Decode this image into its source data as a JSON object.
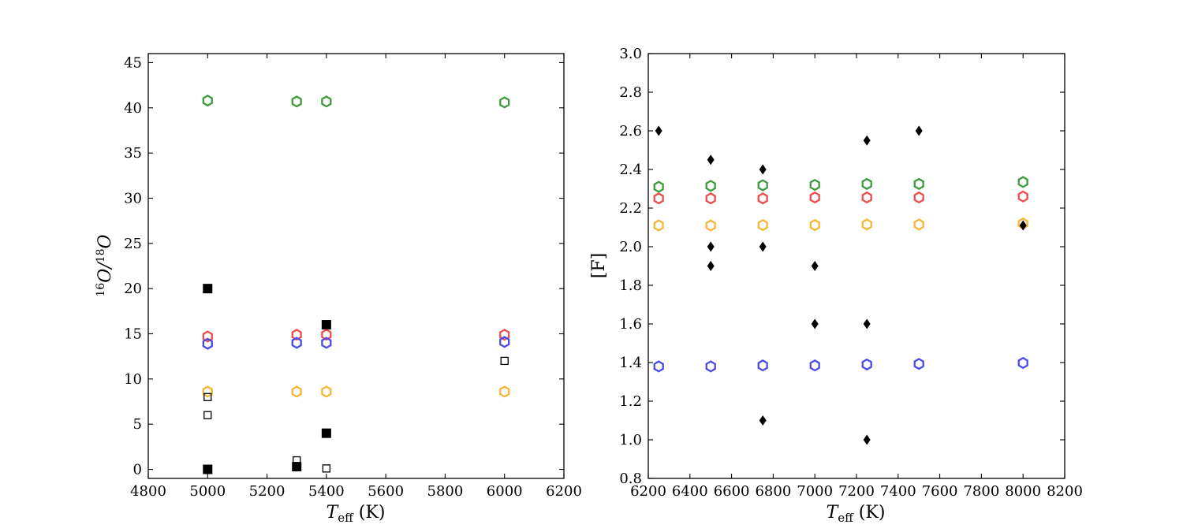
{
  "colors": {
    "green": "#3c9b3c",
    "red": "#f04c4c",
    "blue": "#4a4ae6",
    "orange": "#f7b535",
    "black": "#000000"
  },
  "chart_data": [
    {
      "type": "scatter",
      "title": "",
      "xlabel": {
        "main": "T",
        "sub": "eff",
        "unit": " (K)"
      },
      "ylabel": {
        "sup1": "16",
        "main1": "O/",
        "sup2": "18",
        "main2": "O"
      },
      "xlim": [
        4800,
        6200
      ],
      "ylim": [
        -1,
        46
      ],
      "xticks": [
        4800,
        5000,
        5200,
        5400,
        5600,
        5800,
        6000,
        6200
      ],
      "xtick_labels": [
        "4800",
        "5000",
        "5200",
        "5400",
        "5600",
        "5800",
        "6000",
        "6200"
      ],
      "yticks": [
        0,
        5,
        10,
        15,
        20,
        25,
        30,
        35,
        40,
        45
      ],
      "ytick_labels": [
        "0",
        "5",
        "10",
        "15",
        "20",
        "25",
        "30",
        "35",
        "40",
        "45"
      ],
      "series": [
        {
          "name": "model-green",
          "marker": "hexagon-open",
          "color": "#3c9b3c",
          "x": [
            5000,
            5300,
            5400,
            6000
          ],
          "y": [
            40.8,
            40.7,
            40.7,
            40.6
          ]
        },
        {
          "name": "model-red",
          "marker": "hexagon-open",
          "color": "#f04c4c",
          "x": [
            5000,
            5300,
            5400,
            6000
          ],
          "y": [
            14.7,
            14.9,
            14.9,
            14.9
          ]
        },
        {
          "name": "model-blue",
          "marker": "hexagon-open",
          "color": "#4a4ae6",
          "x": [
            5000,
            5300,
            5400,
            6000
          ],
          "y": [
            13.9,
            14.0,
            14.0,
            14.1
          ]
        },
        {
          "name": "model-orange",
          "marker": "hexagon-open",
          "color": "#f7b535",
          "x": [
            5000,
            5300,
            5400,
            6000
          ],
          "y": [
            8.6,
            8.6,
            8.6,
            8.6
          ]
        },
        {
          "name": "observed-filled",
          "marker": "square-filled",
          "color": "#000000",
          "x": [
            5000,
            5000,
            5300,
            5400,
            5400
          ],
          "y": [
            20,
            0,
            0.3,
            16,
            4
          ]
        },
        {
          "name": "observed-open",
          "marker": "square-open",
          "color": "#000000",
          "x": [
            5000,
            5000,
            5300,
            5400,
            6000
          ],
          "y": [
            8,
            6,
            1,
            0.1,
            12
          ]
        }
      ]
    },
    {
      "type": "scatter",
      "title": "",
      "xlabel": {
        "main": "T",
        "sub": "eff",
        "unit": " (K)"
      },
      "ylabel": {
        "text": "[F]"
      },
      "xlim": [
        6200,
        8200
      ],
      "ylim": [
        0.8,
        3.0
      ],
      "xticks": [
        6200,
        6400,
        6600,
        6800,
        7000,
        7200,
        7400,
        7600,
        7800,
        8000,
        8200
      ],
      "xtick_labels": [
        "6200",
        "6400",
        "6600",
        "6800",
        "7000",
        "7200",
        "7400",
        "7600",
        "7800",
        "8000",
        "8200"
      ],
      "yticks": [
        0.8,
        1.0,
        1.2,
        1.4,
        1.6,
        1.8,
        2.0,
        2.2,
        2.4,
        2.6,
        2.8,
        3.0
      ],
      "ytick_labels": [
        "0.8",
        "1.0",
        "1.2",
        "1.4",
        "1.6",
        "1.8",
        "2.0",
        "2.2",
        "2.4",
        "2.6",
        "2.8",
        "3.0"
      ],
      "series": [
        {
          "name": "model-green",
          "marker": "hexagon-open",
          "color": "#3c9b3c",
          "x": [
            6250,
            6500,
            6750,
            7000,
            7250,
            7500,
            8000
          ],
          "y": [
            2.31,
            2.315,
            2.318,
            2.32,
            2.325,
            2.325,
            2.335
          ]
        },
        {
          "name": "model-red",
          "marker": "hexagon-open",
          "color": "#f04c4c",
          "x": [
            6250,
            6500,
            6750,
            7000,
            7250,
            7500,
            8000
          ],
          "y": [
            2.25,
            2.25,
            2.25,
            2.255,
            2.255,
            2.255,
            2.26
          ]
        },
        {
          "name": "model-orange",
          "marker": "hexagon-open",
          "color": "#f7b535",
          "x": [
            6250,
            6500,
            6750,
            7000,
            7250,
            7500,
            8000
          ],
          "y": [
            2.11,
            2.11,
            2.112,
            2.112,
            2.115,
            2.115,
            2.12
          ]
        },
        {
          "name": "model-blue",
          "marker": "hexagon-open",
          "color": "#4a4ae6",
          "x": [
            6250,
            6500,
            6750,
            7000,
            7250,
            7500,
            8000
          ],
          "y": [
            1.38,
            1.38,
            1.385,
            1.385,
            1.39,
            1.393,
            1.398
          ]
        },
        {
          "name": "observed",
          "marker": "diamond-filled",
          "color": "#000000",
          "x": [
            6250,
            6500,
            6500,
            6500,
            6750,
            6750,
            6750,
            7000,
            7000,
            7250,
            7250,
            7250,
            7500,
            8000
          ],
          "y": [
            2.6,
            2.45,
            2.0,
            1.9,
            2.4,
            2.0,
            1.1,
            1.9,
            1.6,
            2.55,
            1.6,
            1.0,
            2.6,
            2.11
          ]
        }
      ]
    }
  ]
}
